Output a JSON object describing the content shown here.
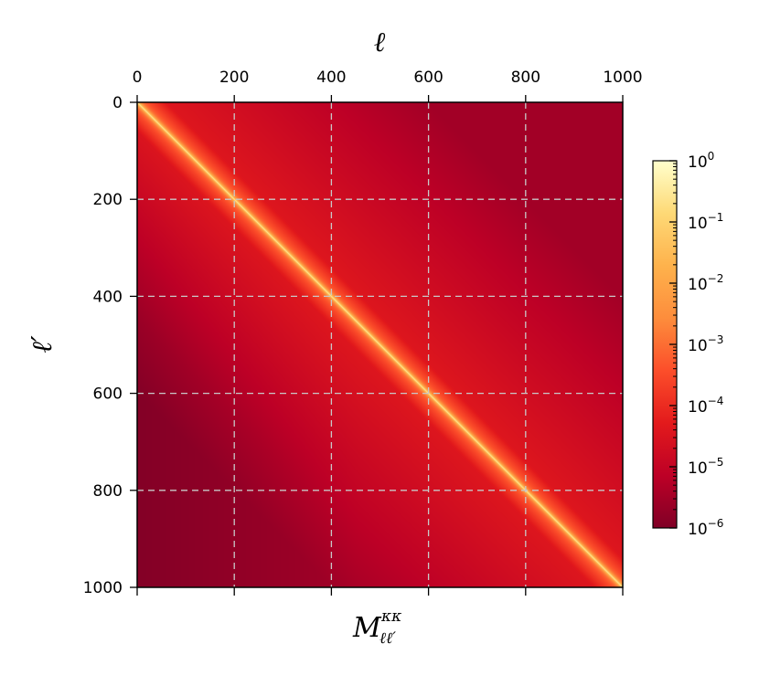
{
  "chart_data": {
    "type": "heatmap",
    "title": "",
    "subtitle": "",
    "xlabel": "ℓ",
    "ylabel": "ℓ′",
    "caption_main": "M",
    "caption_sup": "κκ",
    "caption_sub": "ℓℓ′",
    "x_ticks": [
      0,
      200,
      400,
      600,
      800,
      1000
    ],
    "y_ticks": [
      0,
      200,
      400,
      600,
      800,
      1000
    ],
    "x_range": [
      0,
      1000
    ],
    "y_range": [
      0,
      1000
    ],
    "x_axis_position": "top",
    "y_axis_inverted": true,
    "grid": true,
    "grid_style": "dashed",
    "grid_color": "#c8c8c8",
    "colormap": "YlOrRd_r",
    "colorbar": {
      "scale": "log",
      "range": [
        1e-06,
        1
      ],
      "tick_labels": [
        {
          "base": "10",
          "exp": "0"
        },
        {
          "base": "10",
          "exp": "−1"
        },
        {
          "base": "10",
          "exp": "−2"
        },
        {
          "base": "10",
          "exp": "−3"
        },
        {
          "base": "10",
          "exp": "−4"
        },
        {
          "base": "10",
          "exp": "−5"
        },
        {
          "base": "10",
          "exp": "−6"
        }
      ],
      "colors": [
        "#800026",
        "#bd0026",
        "#e31a1c",
        "#fc4e2a",
        "#fd8d3c",
        "#feb24c",
        "#fed976",
        "#ffffcc"
      ],
      "placement": "right"
    },
    "structure": {
      "diagonal_value": 1,
      "diagonal_peak_visible": 0.001,
      "background_near": 5e-05,
      "background_far": 3e-06,
      "lower_left_min": 1e-06
    }
  }
}
